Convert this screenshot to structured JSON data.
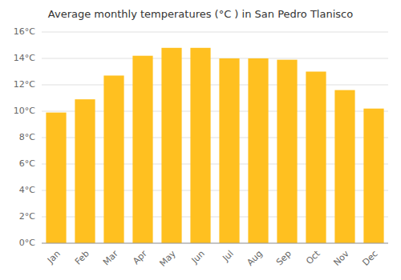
{
  "chart_data": {
    "type": "bar",
    "title": "Average monthly temperatures (°C ) in San Pedro Tlanisco",
    "categories": [
      "Jan",
      "Feb",
      "Mar",
      "Apr",
      "May",
      "Jun",
      "Jul",
      "Aug",
      "Sep",
      "Oct",
      "Nov",
      "Dec"
    ],
    "values": [
      9.9,
      10.9,
      12.7,
      14.2,
      14.8,
      14.8,
      14.0,
      14.0,
      13.9,
      13.0,
      11.6,
      10.2
    ],
    "color": "#FFC020",
    "ylim": [
      0,
      16
    ],
    "yticks": [
      {
        "value": 0,
        "label": "0°C"
      },
      {
        "value": 2,
        "label": "2°C"
      },
      {
        "value": 4,
        "label": "4°C"
      },
      {
        "value": 6,
        "label": "6°C"
      },
      {
        "value": 8,
        "label": "8°C"
      },
      {
        "value": 10,
        "label": "10°C"
      },
      {
        "value": 12,
        "label": "12°C"
      },
      {
        "value": 14,
        "label": "14°C"
      },
      {
        "value": 16,
        "label": "16°C"
      }
    ],
    "grid": true
  }
}
